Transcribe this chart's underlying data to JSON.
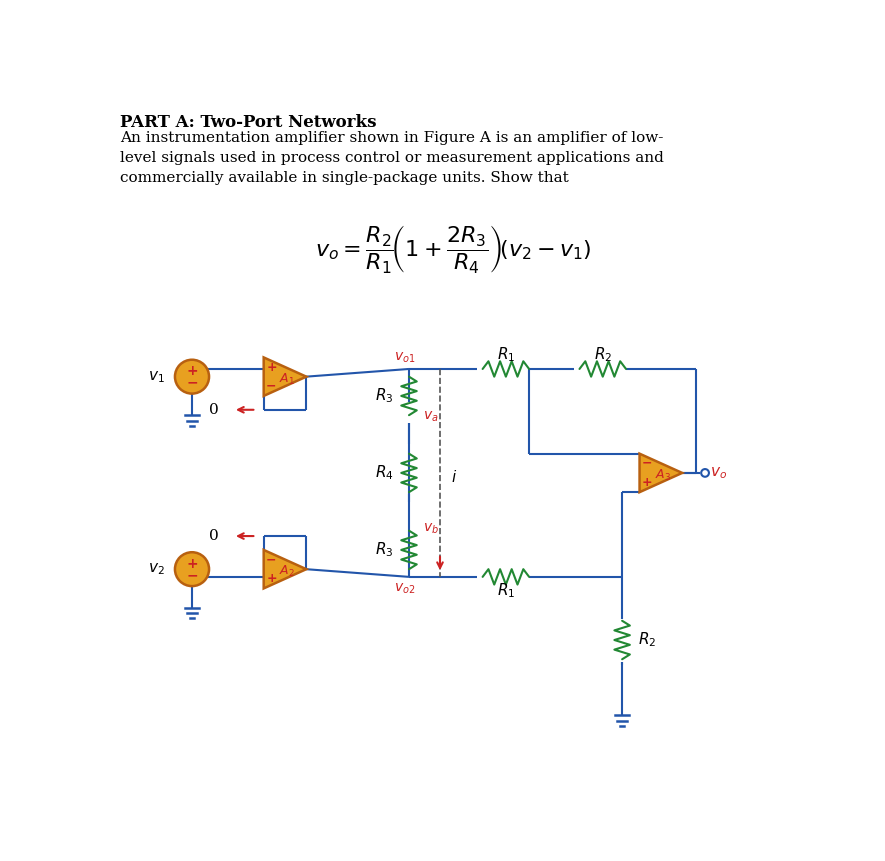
{
  "title": "PART A: Two-Port Networks",
  "body_line1": "An instrumentation amplifier shown in Figure A is an amplifier of low-",
  "body_line2": "level signals used in process control or measurement applications and",
  "body_line3": "commercially available in single-package units. Show that",
  "bg_color": "#ffffff",
  "text_color": "#000000",
  "wire_color": "#2255aa",
  "resistor_color": "#228833",
  "opamp_fill": "#e8a020",
  "opamp_edge": "#b86010",
  "source_fill": "#e8a020",
  "source_edge": "#b86010",
  "red_color": "#cc2222",
  "label_color": "#cc2222",
  "title_fontsize": 12,
  "body_fontsize": 11,
  "formula_fontsize": 14,
  "circuit_fontsize": 10
}
